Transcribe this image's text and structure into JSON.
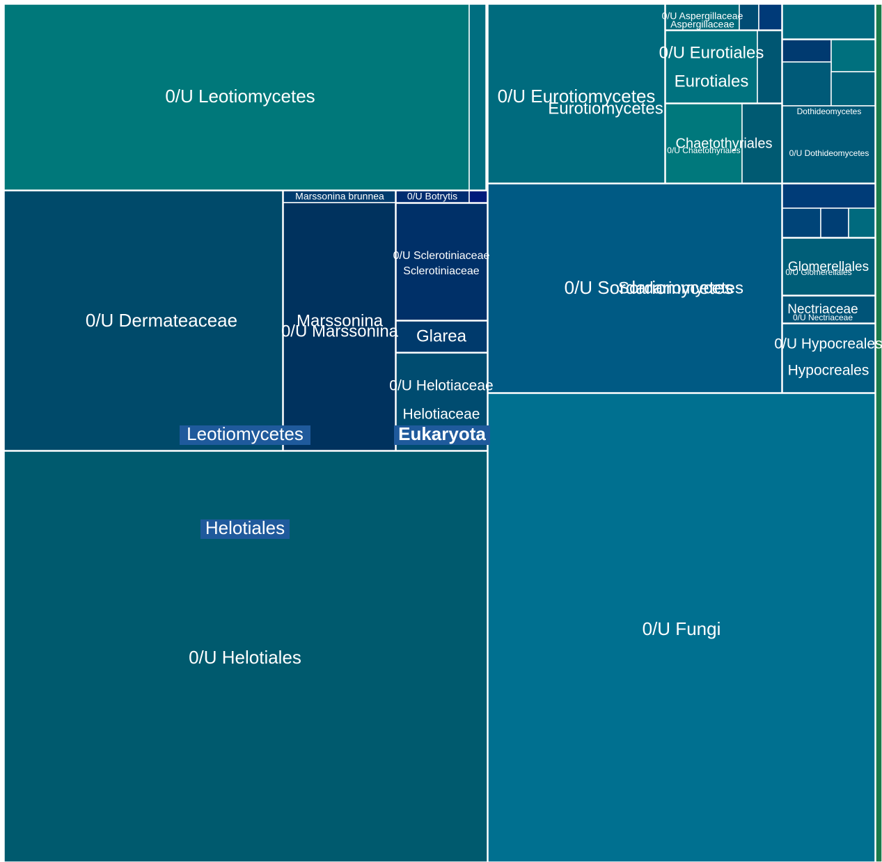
{
  "labels": {
    "leotiomycetes_uncl": "0/U Leotiomycetes",
    "dermateaceae_uncl": "0/U Dermateaceae",
    "marssonina_uncl": "0/U Marssonina",
    "marssonina": "Marssonina",
    "marssonina_brunnea": "Marssonina brunnea",
    "botrytis": "0/U Botrytis",
    "sclerotiniaceae_uncl": "0/U Sclerotiniaceae",
    "sclerotiniaceae": "Sclerotiniaceae",
    "glarea": "Glarea",
    "helotiaceae_uncl": "0/U Helotiaceae",
    "helotiaceae": "Helotiaceae",
    "leotiomycetes": "Leotiomycetes",
    "eukaryota": "Eukaryota",
    "helotiales": "Helotiales",
    "helotiales_uncl": "0/U Helotiales",
    "eurotiomycetes_uncl": "0/U Eurotiomycetes",
    "eurotiomycetes": "Eurotiomycetes",
    "aspergillaceae_uncl": "0/U Aspergillaceae",
    "aspergillaceae": "Aspergillaceae",
    "eurotiales_uncl": "0/U Eurotiales",
    "eurotiales": "Eurotiales",
    "chaetothyriales_uncl": "0/U Chaetothyriales",
    "chaetothyriales": "Chaetothyriales",
    "dothideomycetes": "Dothideomycetes",
    "dothideomycetes_uncl": "0/U Dothideomycetes",
    "sordariomycetes_uncl": "0/U Sordariomycetes",
    "sordariomycetes": "Sordariomycetes",
    "glomerellales_uncl": "0/U Glomerellales",
    "glomerellales": "Glomerellales",
    "nectriaceae_uncl": "0/U Nectriaceae",
    "nectriaceae": "Nectriaceae",
    "hypocreales_uncl": "0/U Hypocreales",
    "hypocreales": "Hypocreales",
    "fungi_uncl": "0/U Fungi"
  }
}
